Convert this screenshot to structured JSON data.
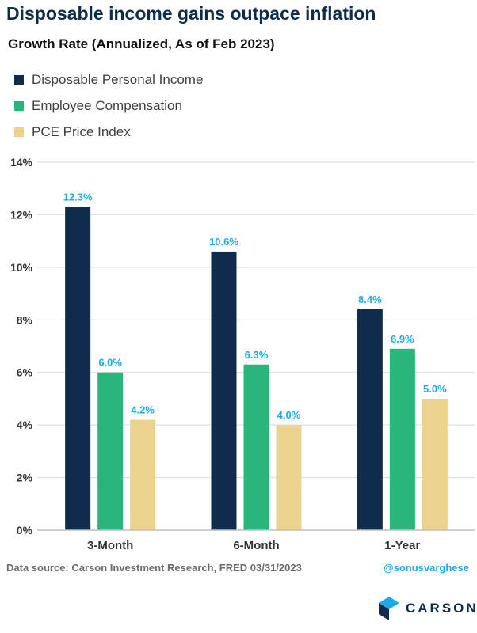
{
  "header": {
    "title": "Disposable income gains outpace inflation",
    "subtitle": "Growth Rate (Annualized, As of Feb 2023)"
  },
  "legend": [
    {
      "label": "Disposable Personal Income",
      "color": "#0f2c4a"
    },
    {
      "label": "Employee Compensation",
      "color": "#2ab57d"
    },
    {
      "label": "PCE Price Index",
      "color": "#ebd38e"
    }
  ],
  "footer": {
    "source": "Data source: Carson Investment Research, FRED   03/31/2023",
    "handle": "@sonusvarghese"
  },
  "logo": {
    "text": "CARSON"
  },
  "colors": {
    "label": "#1fa8e8",
    "axis_text": "#333333",
    "grid": "#d9d9d9",
    "logo_dark": "#0f2c4a",
    "logo_accent": "#1fa8e8"
  },
  "chart_data": {
    "type": "bar",
    "categories": [
      "3-Month",
      "6-Month",
      "1-Year"
    ],
    "series": [
      {
        "name": "Disposable Personal Income",
        "values": [
          12.3,
          10.6,
          8.4
        ],
        "labels": [
          "12.3%",
          "10.6%",
          "8.4%"
        ],
        "color": "#0f2c4a"
      },
      {
        "name": "Employee Compensation",
        "values": [
          6.0,
          6.3,
          6.9
        ],
        "labels": [
          "6.0%",
          "6.3%",
          "6.9%"
        ],
        "color": "#2ab57d"
      },
      {
        "name": "PCE Price Index",
        "values": [
          4.2,
          4.0,
          5.0
        ],
        "labels": [
          "4.2%",
          "4.0%",
          "5.0%"
        ],
        "color": "#ebd38e"
      }
    ],
    "ylim": [
      0,
      14
    ],
    "yticks": [
      0,
      2,
      4,
      6,
      8,
      10,
      12,
      14
    ],
    "ytick_labels": [
      "0%",
      "2%",
      "4%",
      "6%",
      "8%",
      "10%",
      "12%",
      "14%"
    ],
    "grid": true,
    "legend_position": "top-left"
  }
}
